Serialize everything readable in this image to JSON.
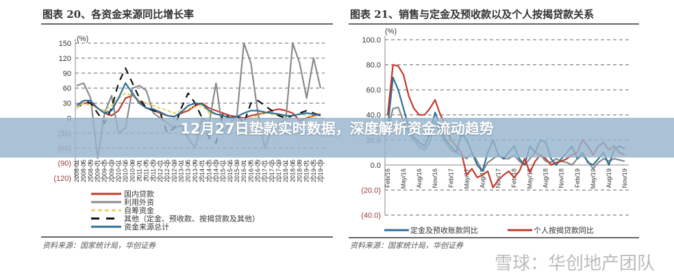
{
  "banner": {
    "headline": "12月27日垫款实时数据，深度解析资金流动趋势"
  },
  "watermark": "雪球：华创地产团队",
  "colors": {
    "red": "#c0392b",
    "gray": "#8a8a8a",
    "yellow": "#e8d36a",
    "black": "#111111",
    "blue": "#2e6f96",
    "banner": "#96b4cd"
  },
  "chart_data": [
    {
      "type": "line",
      "title": "图表 20、各资金来源同比增长率",
      "unit": "(%)",
      "ylim": [
        -120,
        150
      ],
      "yticks": [
        "150",
        "120",
        "90",
        "60",
        "30",
        "0",
        "(30)",
        "(60)",
        "(90)",
        "(120)"
      ],
      "ytick_values": [
        150,
        120,
        90,
        60,
        30,
        0,
        -30,
        -60,
        -90,
        -120
      ],
      "grid": true,
      "legend_placement": "bottom",
      "x": [
        "2008-01",
        "2008-05",
        "2008-09",
        "2009-01",
        "2009-05",
        "2009-09",
        "2010-01",
        "2010-05",
        "2010-09",
        "2011-01",
        "2011-05",
        "2011-09",
        "2012-01",
        "2012-05",
        "2012-09",
        "2013-01",
        "2013-05",
        "2013-09",
        "2014-01",
        "2014-05",
        "2014-09",
        "2015-01",
        "2015-05",
        "2015-09",
        "2016-01",
        "2016-05",
        "2016-09",
        "2017-01",
        "2017-05",
        "2017-09",
        "2018-01",
        "2018-05",
        "2018-09",
        "2019-01",
        "2019-05",
        "2019-09"
      ],
      "series": [
        {
          "name": "国内贷款",
          "color": "#c0392b",
          "style": "solid",
          "values": [
            20,
            30,
            30,
            20,
            10,
            5,
            15,
            40,
            45,
            35,
            20,
            15,
            10,
            5,
            3,
            10,
            15,
            25,
            30,
            20,
            15,
            10,
            5,
            3,
            0,
            5,
            8,
            10,
            15,
            18,
            15,
            10,
            -5,
            0,
            5,
            8
          ]
        },
        {
          "name": "利用外资",
          "color": "#8a8a8a",
          "style": "solid",
          "values": [
            65,
            70,
            40,
            -80,
            10,
            45,
            -30,
            -20,
            60,
            65,
            55,
            10,
            0,
            -10,
            -20,
            -15,
            -40,
            -60,
            0,
            -10,
            70,
            -30,
            -10,
            5,
            150,
            110,
            10,
            -60,
            -20,
            -10,
            -5,
            150,
            110,
            40,
            120,
            60
          ]
        },
        {
          "name": "自筹资金",
          "color": "#e8d36a",
          "style": "dashed",
          "values": [
            20,
            30,
            25,
            20,
            15,
            25,
            40,
            50,
            45,
            35,
            30,
            25,
            20,
            15,
            10,
            15,
            20,
            22,
            25,
            10,
            8,
            5,
            0,
            -5,
            -3,
            0,
            5,
            10,
            8,
            5,
            3,
            5,
            8,
            5,
            3,
            5
          ]
        },
        {
          "name": "其他（定金、预收款、按揭贷款及其他）",
          "color": "#111111",
          "style": "dashed",
          "values": [
            25,
            35,
            30,
            10,
            -10,
            20,
            70,
            100,
            70,
            40,
            20,
            15,
            10,
            -30,
            -20,
            20,
            50,
            30,
            0,
            -40,
            -50,
            10,
            0,
            5,
            -10,
            30,
            35,
            25,
            15,
            5,
            0,
            5,
            10,
            15,
            10,
            5
          ]
        },
        {
          "name": "资金来源总计",
          "color": "#2e6f96",
          "style": "solid",
          "values": [
            25,
            35,
            35,
            20,
            10,
            15,
            40,
            70,
            50,
            30,
            20,
            18,
            12,
            5,
            3,
            12,
            25,
            30,
            28,
            15,
            8,
            5,
            0,
            3,
            10,
            15,
            15,
            12,
            10,
            8,
            5,
            5,
            8,
            10,
            8,
            5
          ]
        }
      ],
      "source": "资料来源：国家统计局，华创证券"
    },
    {
      "type": "line",
      "title": "图表 21、销售与定金及预收款以及个人按揭贷款关系",
      "unit": "(%)",
      "ylim": [
        -40,
        100
      ],
      "yticks": [
        "100.0",
        "80.0",
        "60.0",
        "40.0",
        "20.0",
        "0.0",
        "(20.0)",
        "(40.0)"
      ],
      "ytick_values": [
        100,
        80,
        60,
        40,
        20,
        0,
        -20,
        -40
      ],
      "grid": true,
      "legend_placement": "bottom",
      "x_range": [
        "Feb/16",
        "Nov/19"
      ],
      "xticks": [
        "Feb/16",
        "May/16",
        "Aug/16",
        "Nov/16",
        "Feb/17",
        "May/17",
        "Aug/17",
        "Nov/17",
        "Feb/18",
        "May/18",
        "Aug/18",
        "Nov/18",
        "Feb/19",
        "May/19",
        "Aug/19",
        "Nov/19"
      ],
      "series": [
        {
          "color": "#8a8a8a",
          "style": "solid",
          "values": [
            28,
            45,
            46,
            35,
            25,
            20,
            15,
            12,
            18,
            35,
            25,
            18,
            12,
            10,
            8,
            5,
            10,
            3,
            -5,
            2,
            5,
            8,
            5,
            5,
            8,
            3,
            0,
            5,
            10,
            8,
            3,
            2,
            5,
            3,
            2,
            0,
            5,
            8,
            3,
            -3,
            2,
            5,
            3,
            5,
            4,
            3
          ]
        },
        {
          "name": "定金及预收账款同比",
          "color": "#2e6f96",
          "style": "solid",
          "values": [
            30,
            70,
            60,
            45,
            30,
            22,
            18,
            15,
            25,
            42,
            30,
            20,
            15,
            10,
            25,
            20,
            10,
            0,
            -5,
            10,
            20,
            8,
            5,
            10,
            15,
            5,
            0,
            15,
            10,
            20,
            18,
            5,
            0,
            5,
            10,
            15,
            5,
            10,
            2,
            0,
            5,
            10,
            0,
            12,
            15,
            13
          ]
        },
        {
          "name": "个人按揭贷款同比",
          "color": "#c0392b",
          "style": "solid",
          "values": [
            40,
            80,
            79,
            72,
            55,
            45,
            40,
            40,
            45,
            52,
            40,
            32,
            20,
            15,
            10,
            -8,
            -3,
            -10,
            -8,
            -5,
            -18,
            -12,
            -8,
            -5,
            -10,
            -5,
            5,
            -6,
            3,
            8,
            5,
            0,
            2,
            3,
            5,
            8,
            10,
            20,
            15,
            8,
            15,
            18,
            12,
            15,
            10,
            8
          ]
        }
      ],
      "source": "资料来源：国家统计局，华创证券"
    }
  ]
}
